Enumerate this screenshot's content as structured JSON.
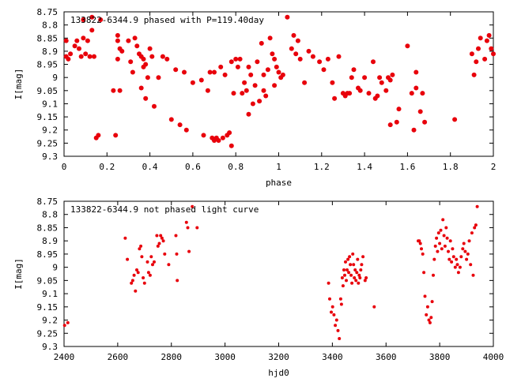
{
  "chart_data": [
    {
      "type": "scatter",
      "title": "133822-6344.9 phased with P=119.40day",
      "xlabel": "phase",
      "ylabel": "I[mag]",
      "xlim": [
        0,
        2
      ],
      "ylim": [
        9.3,
        8.75
      ],
      "y_inverted": true,
      "grid": false,
      "marker_color": "#e8000b",
      "x_ticks": [
        "0",
        "0.2",
        "0.4",
        "0.6",
        "0.8",
        "1",
        "1.2",
        "1.4",
        "1.6",
        "1.8",
        "2"
      ],
      "y_ticks": [
        "8.75",
        "8.8",
        "8.85",
        "8.9",
        "8.95",
        "9",
        "9.05",
        "9.1",
        "9.15",
        "9.2",
        "9.25",
        "9.3"
      ],
      "points": [
        [
          0.01,
          8.86
        ],
        [
          0.01,
          8.92
        ],
        [
          0.02,
          8.93
        ],
        [
          0.03,
          8.91
        ],
        [
          0.05,
          8.88
        ],
        [
          0.06,
          8.86
        ],
        [
          0.07,
          8.89
        ],
        [
          0.08,
          8.92
        ],
        [
          0.09,
          8.85
        ],
        [
          0.09,
          8.78
        ],
        [
          0.1,
          8.91
        ],
        [
          0.11,
          8.86
        ],
        [
          0.12,
          8.92
        ],
        [
          0.13,
          8.77
        ],
        [
          0.13,
          8.82
        ],
        [
          0.14,
          8.92
        ],
        [
          0.15,
          9.23
        ],
        [
          0.16,
          9.22
        ],
        [
          0.17,
          8.78
        ],
        [
          0.23,
          9.05
        ],
        [
          0.24,
          9.22
        ],
        [
          0.25,
          8.84
        ],
        [
          0.25,
          8.86
        ],
        [
          0.25,
          8.93
        ],
        [
          0.26,
          8.89
        ],
        [
          0.26,
          9.05
        ],
        [
          0.27,
          8.9
        ],
        [
          0.3,
          8.86
        ],
        [
          0.31,
          8.94
        ],
        [
          0.32,
          8.98
        ],
        [
          0.33,
          8.85
        ],
        [
          0.34,
          8.88
        ],
        [
          0.35,
          8.91
        ],
        [
          0.36,
          9.04
        ],
        [
          0.36,
          8.92
        ],
        [
          0.37,
          8.93
        ],
        [
          0.37,
          8.96
        ],
        [
          0.38,
          9.08
        ],
        [
          0.38,
          8.95
        ],
        [
          0.39,
          9.0
        ],
        [
          0.4,
          8.89
        ],
        [
          0.41,
          8.92
        ],
        [
          0.42,
          9.11
        ],
        [
          0.44,
          9.0
        ],
        [
          0.46,
          8.92
        ],
        [
          0.48,
          8.93
        ],
        [
          0.5,
          9.16
        ],
        [
          0.52,
          8.97
        ],
        [
          0.54,
          9.18
        ],
        [
          0.56,
          8.98
        ],
        [
          0.57,
          9.2
        ],
        [
          0.6,
          9.02
        ],
        [
          0.64,
          9.01
        ],
        [
          0.65,
          9.22
        ],
        [
          0.67,
          9.05
        ],
        [
          0.68,
          8.98
        ],
        [
          0.69,
          9.23
        ],
        [
          0.7,
          8.98
        ],
        [
          0.7,
          9.24
        ],
        [
          0.71,
          9.23
        ],
        [
          0.72,
          9.24
        ],
        [
          0.73,
          8.96
        ],
        [
          0.74,
          9.23
        ],
        [
          0.75,
          8.99
        ],
        [
          0.76,
          9.22
        ],
        [
          0.77,
          9.21
        ],
        [
          0.78,
          9.26
        ],
        [
          0.78,
          8.94
        ],
        [
          0.79,
          9.06
        ],
        [
          0.8,
          8.93
        ],
        [
          0.81,
          8.96
        ],
        [
          0.82,
          8.93
        ],
        [
          0.83,
          9.06
        ],
        [
          0.84,
          9.02
        ],
        [
          0.85,
          9.05
        ],
        [
          0.86,
          9.14
        ],
        [
          0.86,
          8.96
        ],
        [
          0.87,
          8.99
        ],
        [
          0.88,
          9.1
        ],
        [
          0.89,
          9.03
        ],
        [
          0.9,
          8.94
        ],
        [
          0.91,
          9.09
        ],
        [
          0.92,
          8.87
        ],
        [
          0.93,
          8.99
        ],
        [
          0.93,
          9.05
        ],
        [
          0.94,
          9.07
        ],
        [
          0.95,
          8.97
        ],
        [
          0.96,
          8.85
        ],
        [
          0.97,
          8.91
        ],
        [
          0.98,
          8.93
        ],
        [
          0.98,
          9.03
        ],
        [
          0.99,
          8.96
        ],
        [
          1.0,
          8.98
        ],
        [
          1.01,
          9.0
        ],
        [
          1.02,
          8.99
        ],
        [
          1.04,
          8.77
        ],
        [
          1.06,
          8.89
        ],
        [
          1.07,
          8.84
        ],
        [
          1.08,
          8.91
        ],
        [
          1.09,
          8.86
        ],
        [
          1.1,
          8.93
        ],
        [
          1.12,
          9.02
        ],
        [
          1.14,
          8.9
        ],
        [
          1.16,
          8.92
        ],
        [
          1.19,
          8.94
        ],
        [
          1.21,
          8.97
        ],
        [
          1.23,
          8.93
        ],
        [
          1.25,
          9.02
        ],
        [
          1.26,
          9.08
        ],
        [
          1.28,
          8.92
        ],
        [
          1.3,
          9.06
        ],
        [
          1.31,
          9.07
        ],
        [
          1.32,
          9.06
        ],
        [
          1.33,
          9.06
        ],
        [
          1.34,
          9.0
        ],
        [
          1.35,
          8.97
        ],
        [
          1.37,
          9.04
        ],
        [
          1.38,
          9.05
        ],
        [
          1.4,
          9.0
        ],
        [
          1.42,
          9.06
        ],
        [
          1.44,
          8.94
        ],
        [
          1.45,
          9.08
        ],
        [
          1.46,
          9.07
        ],
        [
          1.47,
          9.0
        ],
        [
          1.48,
          9.02
        ],
        [
          1.5,
          9.05
        ],
        [
          1.51,
          9.0
        ],
        [
          1.52,
          9.01
        ],
        [
          1.52,
          9.18
        ],
        [
          1.53,
          8.99
        ],
        [
          1.55,
          9.17
        ],
        [
          1.56,
          9.12
        ],
        [
          1.6,
          8.88
        ],
        [
          1.62,
          9.06
        ],
        [
          1.63,
          9.2
        ],
        [
          1.64,
          9.04
        ],
        [
          1.64,
          8.98
        ],
        [
          1.66,
          9.13
        ],
        [
          1.67,
          9.06
        ],
        [
          1.68,
          9.17
        ],
        [
          1.82,
          9.16
        ],
        [
          1.9,
          8.91
        ],
        [
          1.91,
          8.99
        ],
        [
          1.92,
          8.94
        ],
        [
          1.93,
          8.89
        ],
        [
          1.94,
          8.85
        ],
        [
          1.96,
          8.93
        ],
        [
          1.97,
          8.86
        ],
        [
          1.98,
          8.84
        ],
        [
          1.99,
          8.89
        ],
        [
          2.0,
          8.91
        ]
      ]
    },
    {
      "type": "scatter",
      "title": "133822-6344.9 not phased light curve",
      "xlabel": "hjd0",
      "ylabel": "I[mag]",
      "xlim": [
        2400,
        4000
      ],
      "ylim": [
        9.3,
        8.75
      ],
      "y_inverted": true,
      "grid": false,
      "marker_color": "#e8000b",
      "x_ticks": [
        "2400",
        "2600",
        "2800",
        "3000",
        "3200",
        "3400",
        "3600",
        "3800",
        "4000"
      ],
      "y_ticks": [
        "8.75",
        "8.8",
        "8.85",
        "8.9",
        "8.95",
        "9",
        "9.05",
        "9.1",
        "9.15",
        "9.2",
        "9.25",
        "9.3"
      ],
      "points": [
        [
          2402,
          9.22
        ],
        [
          2414,
          9.21
        ],
        [
          2628,
          8.89
        ],
        [
          2636,
          8.97
        ],
        [
          2651,
          9.06
        ],
        [
          2656,
          9.05
        ],
        [
          2661,
          9.03
        ],
        [
          2666,
          9.09
        ],
        [
          2671,
          9.01
        ],
        [
          2676,
          9.02
        ],
        [
          2681,
          8.93
        ],
        [
          2686,
          8.92
        ],
        [
          2690,
          8.96
        ],
        [
          2695,
          9.04
        ],
        [
          2700,
          9.06
        ],
        [
          2711,
          8.98
        ],
        [
          2715,
          9.02
        ],
        [
          2721,
          9.03
        ],
        [
          2725,
          8.96
        ],
        [
          2730,
          8.99
        ],
        [
          2736,
          8.98
        ],
        [
          2746,
          8.88
        ],
        [
          2750,
          8.92
        ],
        [
          2755,
          8.91
        ],
        [
          2760,
          8.88
        ],
        [
          2765,
          8.89
        ],
        [
          2770,
          8.9
        ],
        [
          2775,
          8.95
        ],
        [
          2790,
          8.99
        ],
        [
          2817,
          8.88
        ],
        [
          2820,
          8.95
        ],
        [
          2822,
          9.05
        ],
        [
          2856,
          8.83
        ],
        [
          2861,
          8.85
        ],
        [
          2866,
          8.94
        ],
        [
          2878,
          8.77
        ],
        [
          2896,
          8.85
        ],
        [
          3386,
          9.06
        ],
        [
          3390,
          9.12
        ],
        [
          3396,
          9.17
        ],
        [
          3401,
          9.15
        ],
        [
          3406,
          9.18
        ],
        [
          3411,
          9.22
        ],
        [
          3416,
          9.2
        ],
        [
          3421,
          9.24
        ],
        [
          3426,
          9.27
        ],
        [
          3431,
          9.12
        ],
        [
          3434,
          9.14
        ],
        [
          3437,
          9.04
        ],
        [
          3440,
          9.07
        ],
        [
          3443,
          9.01
        ],
        [
          3446,
          9.03
        ],
        [
          3449,
          8.98
        ],
        [
          3452,
          9.05
        ],
        [
          3455,
          9.01
        ],
        [
          3458,
          8.97
        ],
        [
          3461,
          9.02
        ],
        [
          3464,
          8.96
        ],
        [
          3467,
          8.99
        ],
        [
          3470,
          9.03
        ],
        [
          3473,
          9.06
        ],
        [
          3476,
          8.95
        ],
        [
          3479,
          8.99
        ],
        [
          3482,
          9.04
        ],
        [
          3485,
          9.01
        ],
        [
          3488,
          9.05
        ],
        [
          3491,
          9.02
        ],
        [
          3494,
          8.97
        ],
        [
          3497,
          9.06
        ],
        [
          3500,
          9.03
        ],
        [
          3503,
          9.04
        ],
        [
          3506,
          9.01
        ],
        [
          3509,
          8.99
        ],
        [
          3514,
          8.96
        ],
        [
          3522,
          9.05
        ],
        [
          3526,
          9.04
        ],
        [
          3556,
          9.15
        ],
        [
          3720,
          8.9
        ],
        [
          3724,
          8.9
        ],
        [
          3728,
          8.91
        ],
        [
          3732,
          8.93
        ],
        [
          3737,
          8.95
        ],
        [
          3741,
          9.02
        ],
        [
          3745,
          9.11
        ],
        [
          3750,
          9.18
        ],
        [
          3755,
          9.15
        ],
        [
          3760,
          9.2
        ],
        [
          3764,
          9.21
        ],
        [
          3768,
          9.19
        ],
        [
          3772,
          9.13
        ],
        [
          3776,
          9.03
        ],
        [
          3780,
          8.97
        ],
        [
          3784,
          8.92
        ],
        [
          3788,
          8.89
        ],
        [
          3792,
          8.94
        ],
        [
          3796,
          8.87
        ],
        [
          3800,
          8.91
        ],
        [
          3804,
          8.86
        ],
        [
          3808,
          8.93
        ],
        [
          3812,
          8.82
        ],
        [
          3816,
          8.88
        ],
        [
          3820,
          8.92
        ],
        [
          3824,
          8.85
        ],
        [
          3828,
          8.89
        ],
        [
          3832,
          8.94
        ],
        [
          3836,
          8.97
        ],
        [
          3840,
          8.9
        ],
        [
          3844,
          8.98
        ],
        [
          3848,
          8.93
        ],
        [
          3852,
          8.96
        ],
        [
          3858,
          9.0
        ],
        [
          3862,
          8.97
        ],
        [
          3866,
          8.99
        ],
        [
          3870,
          9.02
        ],
        [
          3876,
          9.0
        ],
        [
          3880,
          8.96
        ],
        [
          3886,
          8.93
        ],
        [
          3890,
          8.91
        ],
        [
          3895,
          8.94
        ],
        [
          3900,
          8.97
        ],
        [
          3905,
          8.95
        ],
        [
          3910,
          8.9
        ],
        [
          3915,
          8.99
        ],
        [
          3920,
          8.87
        ],
        [
          3925,
          9.03
        ],
        [
          3930,
          8.85
        ],
        [
          3935,
          8.84
        ],
        [
          3940,
          8.77
        ]
      ]
    }
  ]
}
